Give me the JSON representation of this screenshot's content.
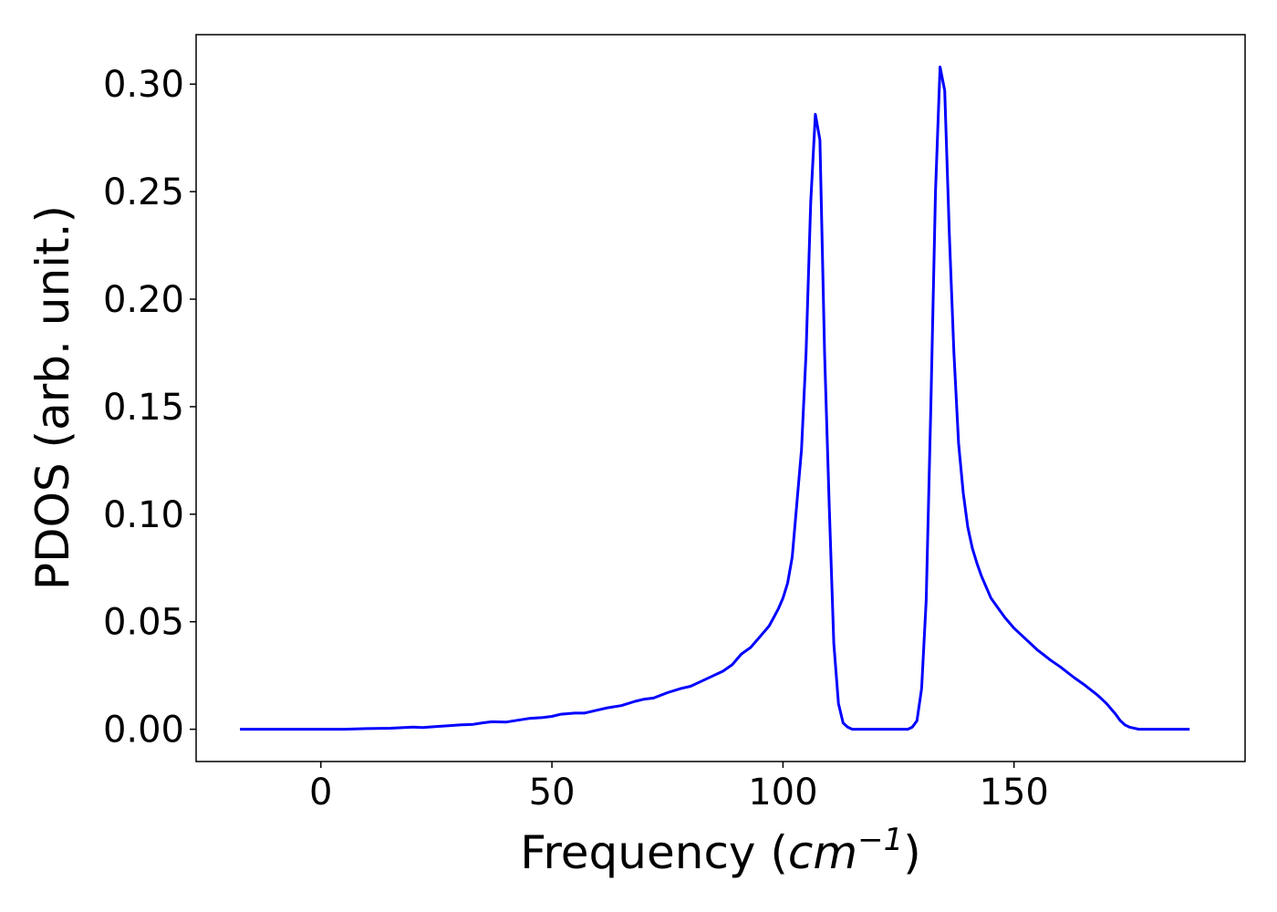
{
  "colors": {
    "line": "#0000ff",
    "axes": "#000000",
    "background": "#ffffff"
  },
  "chart_data": {
    "type": "line",
    "title": "",
    "xlabel": "Frequency (cm⁻¹)",
    "xlabel_text": "Frequency (",
    "xlabel_math_base": "cm",
    "xlabel_math_sup": "−1",
    "xlabel_close": ")",
    "ylabel": "PDOS (arb. unit.)",
    "xlim": [
      -27,
      200
    ],
    "ylim": [
      -0.015,
      0.323
    ],
    "xticks": [
      0,
      50,
      100,
      150
    ],
    "xtick_labels": [
      "0",
      "50",
      "100",
      "150"
    ],
    "yticks": [
      0.0,
      0.05,
      0.1,
      0.15,
      0.2,
      0.25,
      0.3
    ],
    "ytick_labels": [
      "0.00",
      "0.05",
      "0.10",
      "0.15",
      "0.20",
      "0.25",
      "0.30"
    ],
    "grid": false,
    "legend": null,
    "series": [
      {
        "x": [
          -17.5,
          0,
          5,
          10,
          15,
          18,
          20,
          22,
          25,
          28,
          30,
          33,
          35,
          37,
          40,
          42,
          45,
          48,
          50,
          52,
          55,
          57,
          60,
          62,
          65,
          68,
          70,
          72,
          75,
          78,
          80,
          82,
          85,
          87,
          89,
          91,
          93,
          95,
          97,
          98,
          99,
          100,
          101,
          102,
          103,
          104,
          105,
          106,
          107,
          108,
          109,
          110,
          111,
          112,
          113,
          114,
          115,
          117,
          120,
          125,
          127,
          128,
          129,
          130,
          131,
          132,
          133,
          134,
          135,
          136,
          137,
          138,
          139,
          140,
          141,
          142,
          143,
          144,
          145,
          146,
          148,
          150,
          152,
          155,
          158,
          160,
          163,
          165,
          168,
          170,
          172,
          173,
          174,
          175,
          177,
          180,
          185,
          188
        ],
        "y": [
          0.0,
          0.0,
          0.0,
          0.0003,
          0.0005,
          0.0008,
          0.001,
          0.0008,
          0.0013,
          0.0017,
          0.002,
          0.0023,
          0.003,
          0.0035,
          0.0033,
          0.004,
          0.005,
          0.0055,
          0.006,
          0.007,
          0.0075,
          0.0075,
          0.009,
          0.01,
          0.011,
          0.013,
          0.014,
          0.0145,
          0.017,
          0.019,
          0.02,
          0.022,
          0.025,
          0.027,
          0.03,
          0.035,
          0.038,
          0.043,
          0.048,
          0.052,
          0.056,
          0.061,
          0.068,
          0.08,
          0.105,
          0.13,
          0.175,
          0.245,
          0.286,
          0.274,
          0.175,
          0.104,
          0.04,
          0.012,
          0.003,
          0.001,
          0.0,
          0.0,
          0.0,
          0.0,
          0.0,
          0.001,
          0.004,
          0.019,
          0.06,
          0.15,
          0.25,
          0.308,
          0.297,
          0.23,
          0.175,
          0.133,
          0.11,
          0.094,
          0.084,
          0.077,
          0.071,
          0.066,
          0.061,
          0.058,
          0.052,
          0.047,
          0.043,
          0.037,
          0.032,
          0.029,
          0.024,
          0.021,
          0.016,
          0.012,
          0.007,
          0.004,
          0.002,
          0.001,
          0.0,
          0.0,
          0.0,
          0.0
        ]
      }
    ]
  }
}
